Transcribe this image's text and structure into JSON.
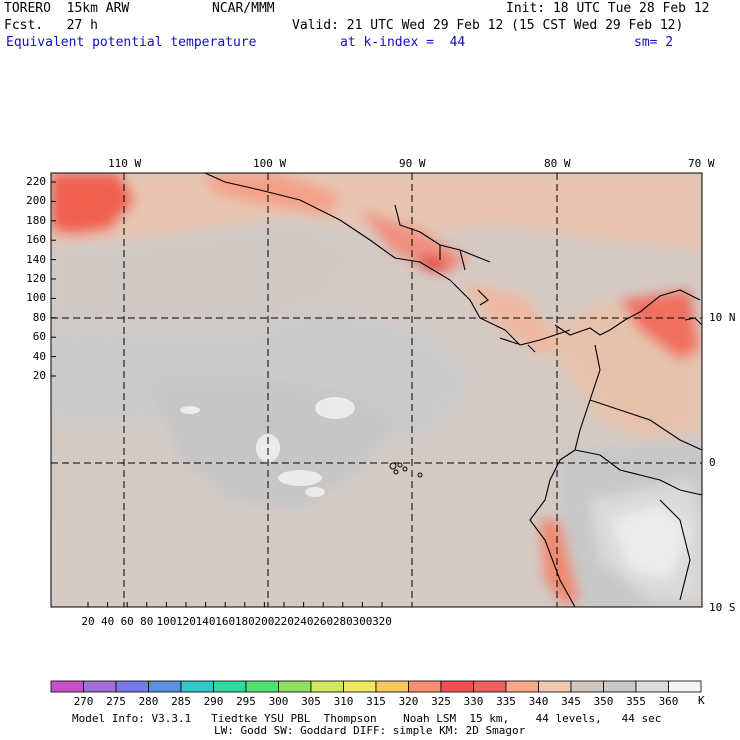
{
  "header": {
    "model": "TORERO  15km ARW",
    "org": "NCAR/MMM",
    "init": "Init: 18 UTC Tue 28 Feb 12",
    "fcst": "Fcst.   27 h",
    "valid": "Valid: 21 UTC Wed 29 Feb 12 (15 CST Wed 29 Feb 12)",
    "field": "Equivalent potential temperature",
    "level": "at k-index =  44",
    "smooth": "sm= 2"
  },
  "map": {
    "lon_labels": [
      "110 W",
      "100 W",
      "90 W",
      "80 W",
      "70 W"
    ],
    "lat_labels": [
      "10 N",
      "0",
      "10 S"
    ],
    "y_ticks": [
      "220",
      "200",
      "180",
      "160",
      "140",
      "120",
      "100",
      "80",
      "60",
      "40",
      "20"
    ],
    "x_ticks": [
      "20",
      "40",
      "60",
      "80",
      "100",
      "120",
      "140",
      "160",
      "180",
      "200",
      "220",
      "240",
      "260",
      "280",
      "300",
      "320"
    ]
  },
  "colorbar": {
    "unit": "K",
    "labels": [
      "270",
      "275",
      "280",
      "285",
      "290",
      "295",
      "300",
      "305",
      "310",
      "315",
      "320",
      "325",
      "330",
      "335",
      "340",
      "345",
      "350",
      "355",
      "360"
    ],
    "colors": [
      "#c850c8",
      "#a070d8",
      "#7878e8",
      "#5a90e0",
      "#30c8c8",
      "#30d8a0",
      "#50e070",
      "#90e060",
      "#d0e860",
      "#f0e860",
      "#f8c860",
      "#f89070",
      "#f05050",
      "#f06060",
      "#f8a888",
      "#f0c8b0",
      "#d0c8c0",
      "#c8c8c8",
      "#dcdcdc",
      "#f4f4f4"
    ]
  },
  "footer": {
    "line1": "Model Info: V3.3.1   Tiedtke YSU PBL  Thompson    Noah LSM  15 km,    44 levels,   44 sec",
    "line2": "LW: Godd SW: Goddard DIFF: simple KM: 2D Smagor"
  }
}
